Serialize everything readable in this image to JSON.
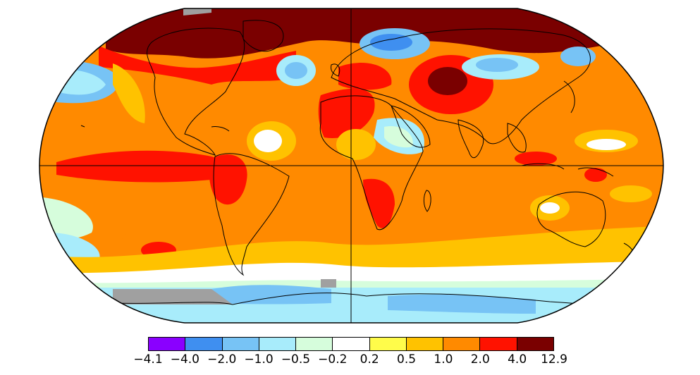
{
  "map": {
    "projection": "robinson",
    "graticule": [
      "equator",
      "prime-meridian"
    ],
    "missing_data_color": "#a0a0a0"
  },
  "legend": {
    "bins": [
      {
        "color": "#8a00ff"
      },
      {
        "color": "#3f8ff0"
      },
      {
        "color": "#77c3f5"
      },
      {
        "color": "#a8ecfb"
      },
      {
        "color": "#d6fddc"
      },
      {
        "color": "#ffffff"
      },
      {
        "color": "#fffc4a"
      },
      {
        "color": "#ffc200"
      },
      {
        "color": "#ff8a00"
      },
      {
        "color": "#ff1200"
      },
      {
        "color": "#7a0000"
      }
    ],
    "ticks": [
      "−4.1",
      "−4.0",
      "−2.0",
      "−1.0",
      "−0.5",
      "−0.2",
      "0.2",
      "0.5",
      "1.0",
      "2.0",
      "4.0",
      "12.9"
    ]
  }
}
